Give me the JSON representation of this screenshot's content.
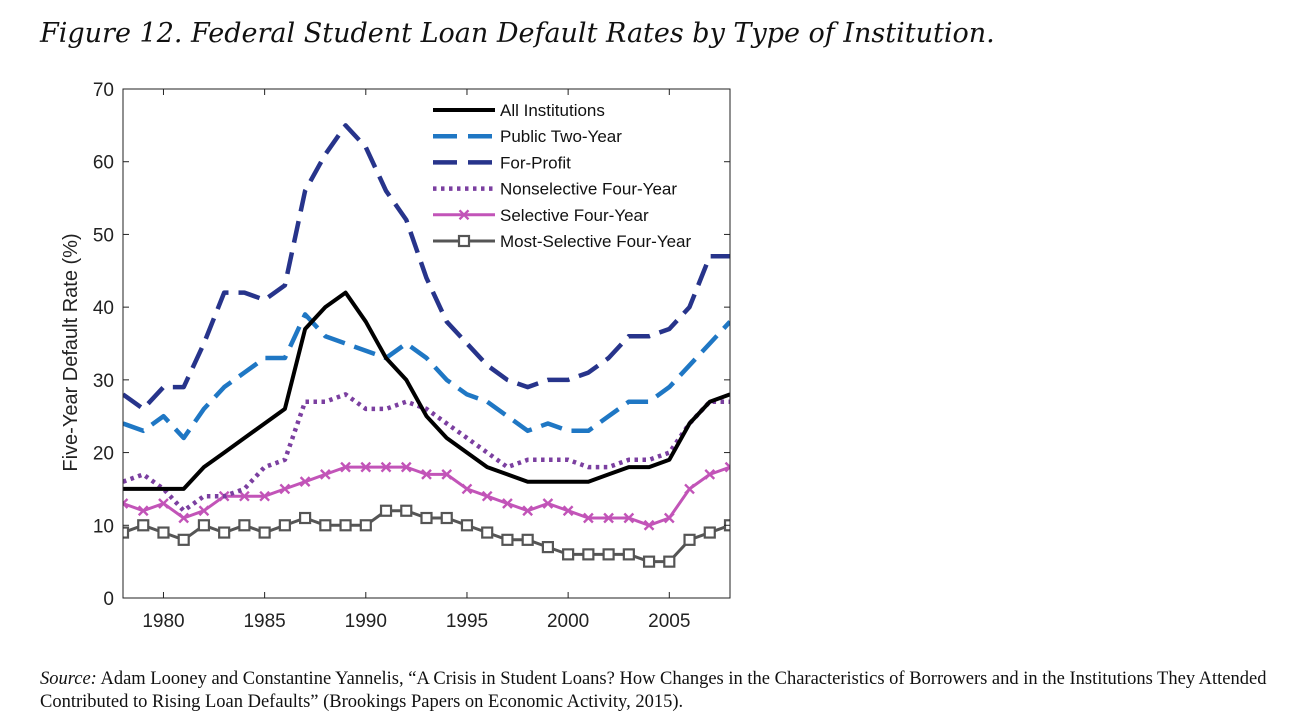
{
  "figure": {
    "title": "Figure 12. Federal Student Loan Default Rates by Type of Institution.",
    "source_label": "Source:",
    "source_text": "Adam Looney and Constantine Yannelis, “A Crisis in Student Loans? How Changes in the Characteristics of Borrowers and in the Institutions They Attended Contributed to Rising Loan Defaults” (Brookings Papers on Economic Activity, 2015)."
  },
  "chart_data": {
    "type": "line",
    "title": "Figure 12. Federal Student Loan Default Rates by Type of Institution.",
    "xlabel": "",
    "ylabel": "Five-Year Default Rate (%)",
    "xlim": [
      1978,
      2008
    ],
    "ylim": [
      0,
      70
    ],
    "xticks": [
      1980,
      1985,
      1990,
      1995,
      2000,
      2005
    ],
    "yticks": [
      0,
      10,
      20,
      30,
      40,
      50,
      60,
      70
    ],
    "legend_position": "top-right",
    "x": [
      1978,
      1979,
      1980,
      1981,
      1982,
      1983,
      1984,
      1985,
      1986,
      1987,
      1988,
      1989,
      1990,
      1991,
      1992,
      1993,
      1994,
      1995,
      1996,
      1997,
      1998,
      1999,
      2000,
      2001,
      2002,
      2003,
      2004,
      2005,
      2006,
      2007,
      2008
    ],
    "series": [
      {
        "name": "All Institutions",
        "color": "#000000",
        "style": "solid",
        "marker": "none",
        "values": [
          15,
          15,
          15,
          15,
          18,
          20,
          22,
          24,
          26,
          37,
          40,
          42,
          38,
          33,
          30,
          25,
          22,
          20,
          18,
          17,
          16,
          16,
          16,
          16,
          17,
          18,
          18,
          19,
          24,
          27,
          28
        ]
      },
      {
        "name": "Public Two-Year",
        "color": "#1f77c4",
        "style": "dashed",
        "marker": "none",
        "values": [
          24,
          23,
          25,
          22,
          26,
          29,
          31,
          33,
          33,
          39,
          36,
          35,
          34,
          33,
          35,
          33,
          30,
          28,
          27,
          25,
          23,
          24,
          23,
          23,
          25,
          27,
          27,
          29,
          32,
          35,
          38
        ]
      },
      {
        "name": "For-Profit",
        "color": "#27348b",
        "style": "dashed",
        "marker": "none",
        "values": [
          28,
          26,
          29,
          29,
          35,
          42,
          42,
          41,
          43,
          56,
          61,
          65,
          62,
          56,
          52,
          44,
          38,
          35,
          32,
          30,
          29,
          30,
          30,
          31,
          33,
          36,
          36,
          37,
          40,
          47,
          47
        ]
      },
      {
        "name": "Nonselective Four-Year",
        "color": "#7b3fa0",
        "style": "dotted",
        "marker": "none",
        "values": [
          16,
          17,
          15,
          12,
          14,
          14,
          15,
          18,
          19,
          27,
          27,
          28,
          26,
          26,
          27,
          26,
          24,
          22,
          20,
          18,
          19,
          19,
          19,
          18,
          18,
          19,
          19,
          20,
          24,
          27,
          27
        ]
      },
      {
        "name": "Selective Four-Year",
        "color": "#c254b8",
        "style": "solid",
        "marker": "x",
        "values": [
          13,
          12,
          13,
          11,
          12,
          14,
          14,
          14,
          15,
          16,
          17,
          18,
          18,
          18,
          18,
          17,
          17,
          15,
          14,
          13,
          12,
          13,
          12,
          11,
          11,
          11,
          10,
          11,
          15,
          17,
          18
        ]
      },
      {
        "name": "Most-Selective Four-Year",
        "color": "#555555",
        "style": "solid",
        "marker": "square",
        "values": [
          9,
          10,
          9,
          8,
          10,
          9,
          10,
          9,
          10,
          11,
          10,
          10,
          10,
          12,
          12,
          11,
          11,
          10,
          9,
          8,
          8,
          7,
          6,
          6,
          6,
          6,
          5,
          5,
          8,
          9,
          10
        ]
      }
    ]
  }
}
